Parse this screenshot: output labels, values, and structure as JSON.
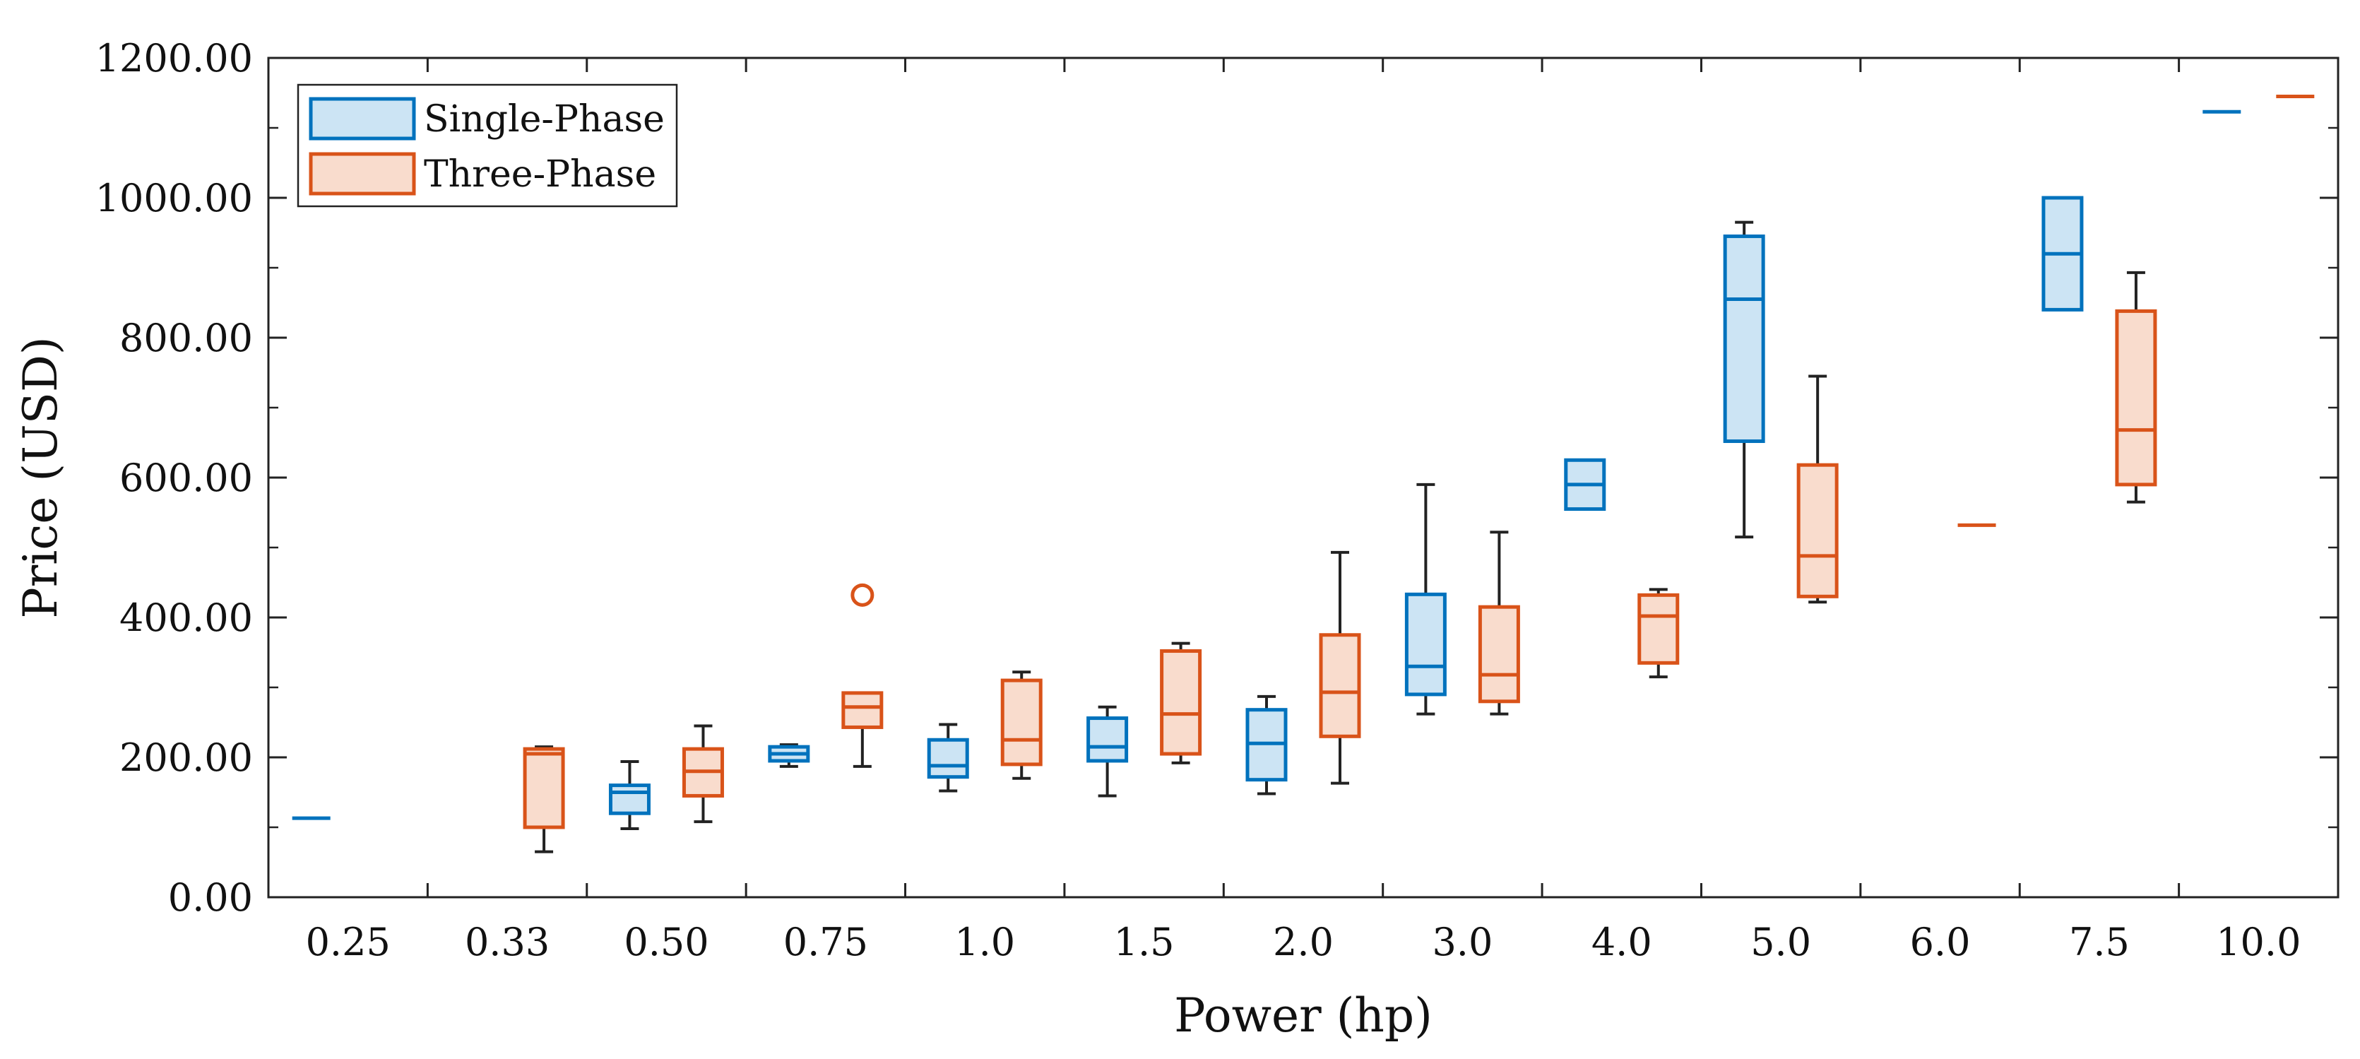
{
  "chart_data": {
    "type": "boxplot",
    "xlabel": "Power (hp)",
    "ylabel": "Price (USD)",
    "categories": [
      "0.25",
      "0.33",
      "0.50",
      "0.75",
      "1.0",
      "1.5",
      "2.0",
      "3.0",
      "4.0",
      "5.0",
      "6.0",
      "7.5",
      "10.0"
    ],
    "ylim": [
      0,
      1200
    ],
    "yticks": [
      "0.00",
      "200.00",
      "400.00",
      "600.00",
      "800.00",
      "1000.00",
      "1200.00"
    ],
    "legend": {
      "position": "top-left"
    },
    "colors": {
      "single": "#0072bd",
      "single_fill": "#cce4f4",
      "three": "#d95319",
      "three_fill": "#f9dccd",
      "whisker": "#222222"
    },
    "series": [
      {
        "name": "Single-Phase",
        "boxes": [
          {
            "category": "0.25",
            "min": 113,
            "q1": 113,
            "median": 113,
            "q3": 113,
            "max": 113
          },
          {
            "category": "0.50",
            "min": 98,
            "q1": 120,
            "median": 150,
            "q3": 160,
            "max": 194
          },
          {
            "category": "0.75",
            "min": 187,
            "q1": 195,
            "median": 205,
            "q3": 215,
            "max": 218
          },
          {
            "category": "1.0",
            "min": 152,
            "q1": 172,
            "median": 188,
            "q3": 225,
            "max": 247
          },
          {
            "category": "1.5",
            "min": 145,
            "q1": 195,
            "median": 215,
            "q3": 256,
            "max": 272
          },
          {
            "category": "2.0",
            "min": 148,
            "q1": 168,
            "median": 220,
            "q3": 268,
            "max": 287
          },
          {
            "category": "3.0",
            "min": 262,
            "q1": 290,
            "median": 330,
            "q3": 433,
            "max": 590
          },
          {
            "category": "4.0",
            "min": 555,
            "q1": 555,
            "median": 590,
            "q3": 625,
            "max": 625
          },
          {
            "category": "5.0",
            "min": 515,
            "q1": 652,
            "median": 855,
            "q3": 945,
            "max": 965
          },
          {
            "category": "7.5",
            "min": 840,
            "q1": 840,
            "median": 920,
            "q3": 1000,
            "max": 1000
          },
          {
            "category": "10.0",
            "min": 1123,
            "q1": 1123,
            "median": 1123,
            "q3": 1123,
            "max": 1123
          }
        ]
      },
      {
        "name": "Three-Phase",
        "boxes": [
          {
            "category": "0.33",
            "min": 65,
            "q1": 100,
            "median": 205,
            "q3": 212,
            "max": 215
          },
          {
            "category": "0.50",
            "min": 108,
            "q1": 145,
            "median": 180,
            "q3": 212,
            "max": 245
          },
          {
            "category": "0.75",
            "min": 187,
            "q1": 243,
            "median": 272,
            "q3": 292,
            "max": 292,
            "outliers": [
              432
            ]
          },
          {
            "category": "1.0",
            "min": 170,
            "q1": 190,
            "median": 225,
            "q3": 310,
            "max": 322
          },
          {
            "category": "1.5",
            "min": 192,
            "q1": 205,
            "median": 262,
            "q3": 352,
            "max": 363
          },
          {
            "category": "2.0",
            "min": 163,
            "q1": 230,
            "median": 293,
            "q3": 375,
            "max": 493
          },
          {
            "category": "3.0",
            "min": 262,
            "q1": 280,
            "median": 318,
            "q3": 415,
            "max": 522
          },
          {
            "category": "4.0",
            "min": 315,
            "q1": 335,
            "median": 402,
            "q3": 432,
            "max": 440
          },
          {
            "category": "5.0",
            "min": 422,
            "q1": 430,
            "median": 488,
            "q3": 618,
            "max": 745
          },
          {
            "category": "6.0",
            "min": 532,
            "q1": 532,
            "median": 532,
            "q3": 532,
            "max": 532
          },
          {
            "category": "7.5",
            "min": 565,
            "q1": 590,
            "median": 668,
            "q3": 838,
            "max": 893
          },
          {
            "category": "10.0",
            "min": 1145,
            "q1": 1145,
            "median": 1145,
            "q3": 1145,
            "max": 1145
          }
        ]
      }
    ]
  }
}
